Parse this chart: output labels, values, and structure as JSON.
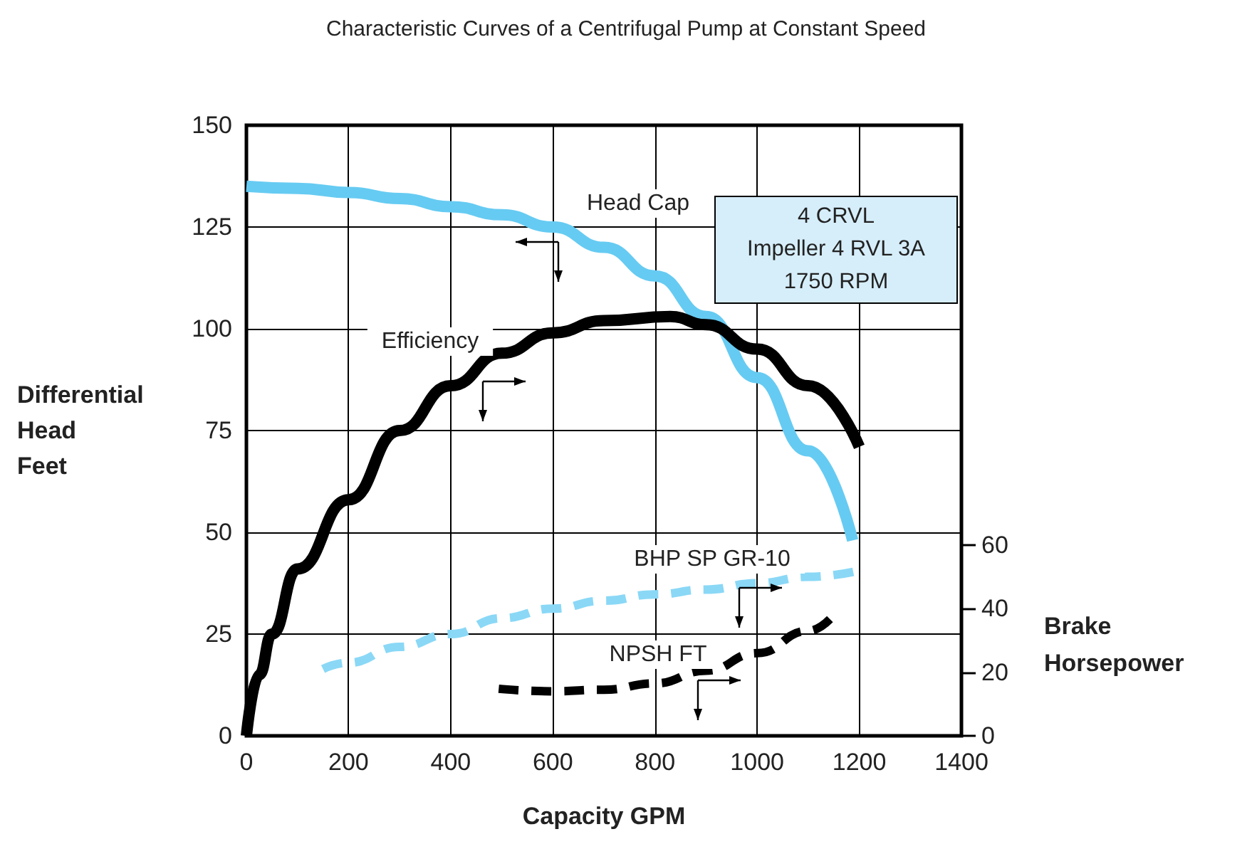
{
  "chart_data": {
    "type": "line",
    "title": "Characteristic Curves of a Centrifugal Pump at Constant Speed",
    "xlabel": "Capacity GPM",
    "ylabel": "Differential Head Feet",
    "y2label": "Brake Horsepower",
    "xlim": [
      0,
      1400
    ],
    "xticks": [
      0,
      200,
      400,
      600,
      800,
      1000,
      1200,
      1400
    ],
    "ylim": [
      0,
      150
    ],
    "yticks": [
      0,
      25,
      50,
      75,
      100,
      125,
      150
    ],
    "y2lim": [
      0,
      192
    ],
    "y2ticks": [
      0,
      20,
      40,
      60
    ],
    "grid": true,
    "marker": "none",
    "series": [
      {
        "name": "Head Cap",
        "color": "#66cbf2",
        "line_style": "solid",
        "x": [
          0,
          100,
          200,
          300,
          400,
          500,
          600,
          700,
          800,
          900,
          1000,
          1100,
          1187
        ],
        "values": [
          135,
          134.5,
          133.5,
          132,
          130,
          128,
          125,
          120,
          113,
          103,
          88,
          70,
          48
        ]
      },
      {
        "name": "Efficiency",
        "color": "#000000",
        "line_style": "solid",
        "x": [
          0,
          25,
          50,
          100,
          200,
          300,
          400,
          500,
          600,
          700,
          830,
          900,
          1000,
          1100,
          1200
        ],
        "values": [
          0,
          15,
          25,
          41,
          58,
          75,
          86,
          94,
          99,
          102,
          103,
          101,
          95,
          86,
          71
        ]
      },
      {
        "name": "BHP SP GR-10",
        "color": "#8ad8f6",
        "line_style": "dashed",
        "axis": "y2",
        "x": [
          150,
          200,
          300,
          400,
          500,
          600,
          700,
          800,
          900,
          1000,
          1100,
          1200
        ],
        "values": [
          21,
          23,
          28,
          32,
          37,
          40,
          42.5,
          44.5,
          46,
          48,
          50,
          52
        ]
      },
      {
        "name": "NPSH FT",
        "color": "#000000",
        "line_style": "dashed",
        "axis": "y2",
        "x": [
          494,
          600,
          700,
          800,
          900,
          1000,
          1100,
          1150
        ],
        "values": [
          14.8,
          14,
          14.5,
          16.5,
          20.5,
          26,
          33,
          38
        ]
      }
    ],
    "annotations": [
      "4 CRVL\nImpeller 4 RVL 3A\n1750 RPM"
    ]
  }
}
